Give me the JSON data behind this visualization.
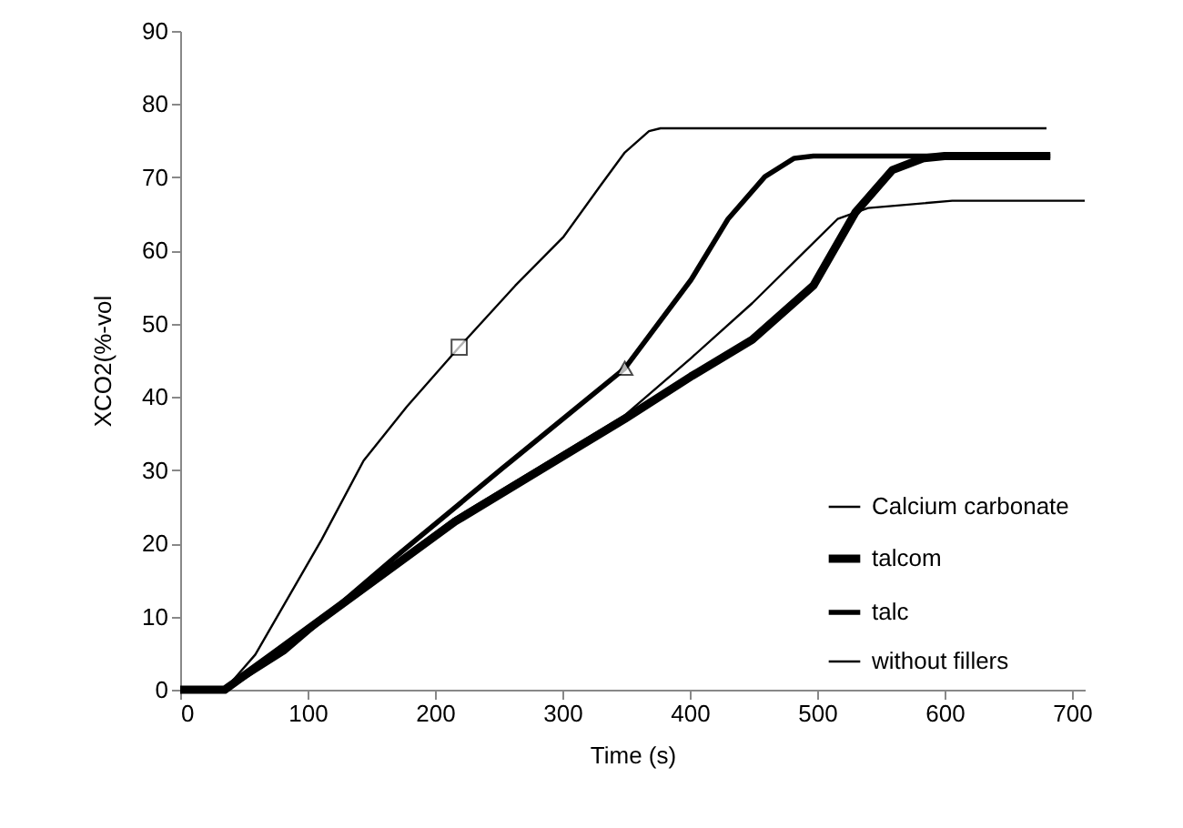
{
  "chart_data": {
    "type": "line",
    "xlabel": "Time (s)",
    "ylabel": "XCO2(%-vol",
    "xlim": [
      0,
      710
    ],
    "xticks": [
      0,
      100,
      200,
      300,
      400,
      500,
      600,
      700
    ],
    "ylim": [
      0,
      90
    ],
    "yticks": [
      0,
      10,
      20,
      30,
      40,
      50,
      60,
      70,
      80,
      90
    ],
    "grid": false,
    "legend": "bottom right",
    "line_style": "solid",
    "series": [
      {
        "name": "Calcium carbonate",
        "color": "#000000",
        "x": [
          0,
          35,
          59,
          111,
          144,
          178,
          219,
          263,
          301,
          330,
          349,
          368,
          377,
          680
        ],
        "values": [
          0,
          0,
          4.8,
          20.5,
          31.3,
          38.7,
          46.8,
          55.2,
          61.9,
          68.9,
          73.4,
          76.3,
          76.7,
          76.7
        ]
      },
      {
        "name": "talcom",
        "color": "#000000",
        "x": [
          0,
          35,
          73,
          216,
          349,
          401,
          449,
          497,
          530,
          559,
          583,
          600,
          683
        ],
        "values": [
          0,
          0,
          4.8,
          23,
          37,
          42.8,
          47.8,
          55.2,
          65.2,
          71,
          72.6,
          72.9,
          72.9
        ]
      },
      {
        "name": "talc",
        "color": "#000000",
        "x": [
          0,
          35,
          82,
          168,
          254,
          349,
          401,
          430,
          459,
          482,
          497,
          683
        ],
        "values": [
          0,
          0,
          5.2,
          18,
          30.4,
          43.9,
          56,
          64.3,
          70.1,
          72.6,
          72.9,
          72.9
        ]
      },
      {
        "name": "without fillers",
        "color": "#000000",
        "x": [
          0,
          35,
          73,
          216,
          349,
          401,
          449,
          516,
          540,
          606,
          710
        ],
        "values": [
          0,
          0,
          4.8,
          23.5,
          37.5,
          45.3,
          52.8,
          64.3,
          65.8,
          66.8,
          66.8
        ]
      },
      {
        "type": "scatter",
        "marker": "square",
        "color": "#000000",
        "x": [
          219
        ],
        "values": [
          46.8
        ]
      },
      {
        "type": "scatter",
        "marker": "triangle",
        "color": "#000000",
        "x": [
          349
        ],
        "values": [
          43.9
        ]
      }
    ]
  }
}
